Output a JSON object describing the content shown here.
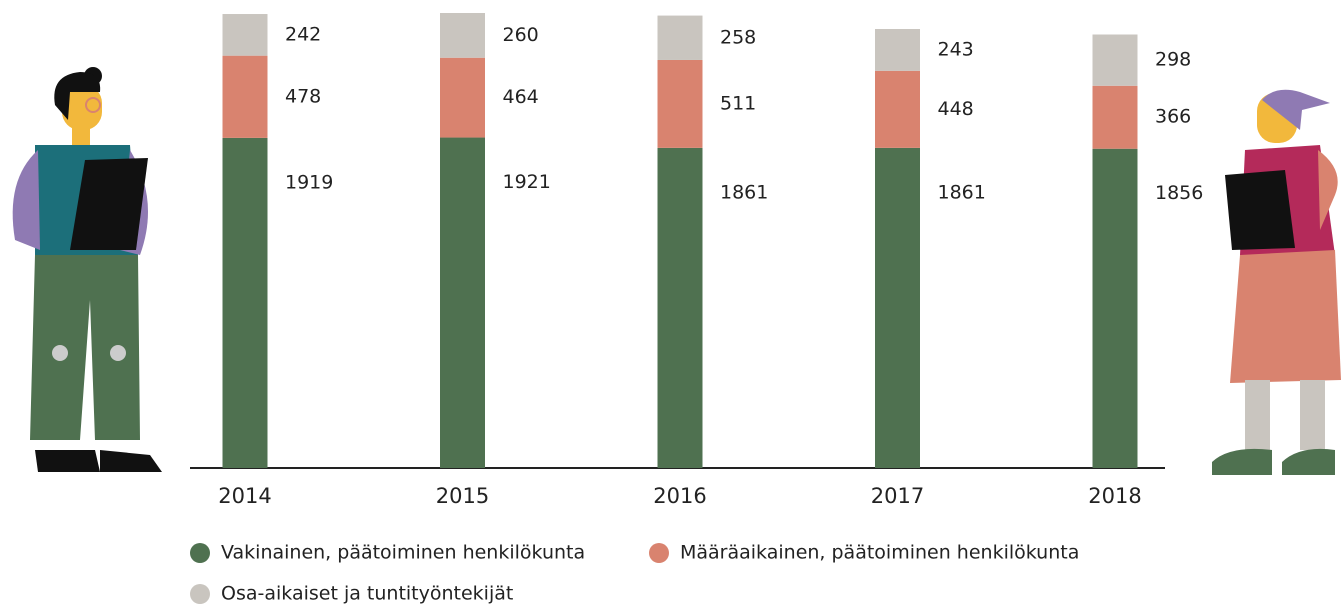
{
  "chart_data": {
    "type": "stacked-bar",
    "categories": [
      "2014",
      "2015",
      "2016",
      "2017",
      "2018"
    ],
    "series": [
      {
        "name": "Vakinainen, päätoiminen henkilökunta",
        "color": "#4f7150",
        "values": [
          1919,
          1921,
          1861,
          1861,
          1856
        ]
      },
      {
        "name": "Määräaikainen, päätoiminen henkilökunta",
        "color": "#d9836f",
        "values": [
          478,
          464,
          511,
          448,
          366
        ]
      },
      {
        "name": "Osa-aikaiset ja tuntityöntekijät",
        "color": "#c9c5bf",
        "values": [
          242,
          260,
          258,
          243,
          298
        ]
      }
    ]
  }
}
